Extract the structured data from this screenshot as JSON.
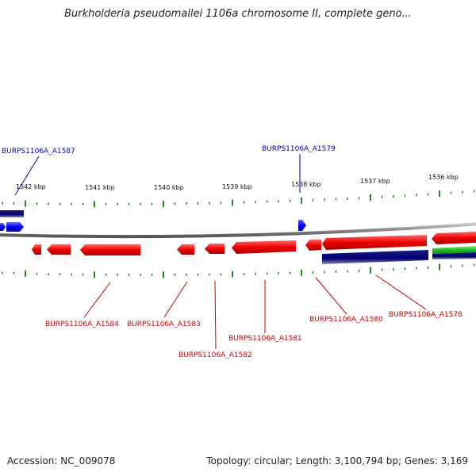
{
  "title": "Burkholderia pseudomallei 1106a chromosome II, complete geno...",
  "footer": {
    "accession": "Accession: NC_009078",
    "summary": "Topology: circular; Length: 3,100,794 bp; Genes: 3,169"
  },
  "colors": {
    "forward_gene": "#0000ff",
    "reverse_gene": "#ff0000",
    "forward_label": "#0000bb",
    "reverse_label": "#cc0000",
    "cds_bar": "#000080",
    "rna_bar": "#33cc33",
    "backbone": "#808080",
    "ticks": "#228822"
  },
  "scale_labels": [
    "1542 kbp",
    "1541 kbp",
    "1540 kbp",
    "1539 kbp",
    "1538 kbp",
    "1537 kbp",
    "1536 kbp"
  ],
  "gene_labels": {
    "top": [
      "BURPS1106A_A1587",
      "BURPS1106A_A1579"
    ],
    "bottom": [
      "BURPS1106A_A1584",
      "BURPS1106A_A1583",
      "BURPS1106A_A1582",
      "BURPS1106A_A1581",
      "BURPS1106A_A1580",
      "BURPS1106A_A1578"
    ]
  }
}
